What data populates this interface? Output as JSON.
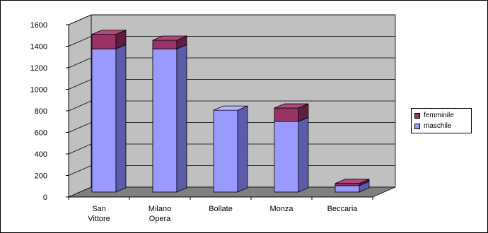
{
  "chart_data": {
    "type": "bar",
    "stacked": true,
    "three_d": true,
    "title": "",
    "xlabel": "",
    "ylabel": "",
    "categories": [
      "San Vittore",
      "Milano Opera",
      "Bollate",
      "Monza",
      "Beccaria"
    ],
    "category_lines": [
      [
        "San",
        "Vittore"
      ],
      [
        "Milano",
        "Opera"
      ],
      [
        "Bollate"
      ],
      [
        "Monza"
      ],
      [
        "Beccaria"
      ]
    ],
    "series": [
      {
        "name": "maschile",
        "values": [
          1330,
          1330,
          760,
          655,
          60
        ],
        "color": "#9999ff",
        "side_color": "#5c5cab",
        "top_color": "#b8b8ff"
      },
      {
        "name": "femminile",
        "values": [
          135,
          80,
          0,
          125,
          20
        ],
        "color": "#993366",
        "side_color": "#5e1f3f",
        "top_color": "#b04a7c"
      }
    ],
    "ylim": [
      0,
      1600
    ],
    "yticks": [
      0,
      200,
      400,
      600,
      800,
      1000,
      1200,
      1400,
      1600
    ],
    "ytick_labels": [
      "0",
      "200",
      "400",
      "600",
      "800",
      "1000",
      "1200",
      "1400",
      "1600"
    ],
    "grid": true,
    "wall_color": "#c0c0c0",
    "floor_color": "#808080",
    "legend": {
      "position": "right",
      "entries": [
        "femminile",
        "maschile"
      ]
    }
  }
}
